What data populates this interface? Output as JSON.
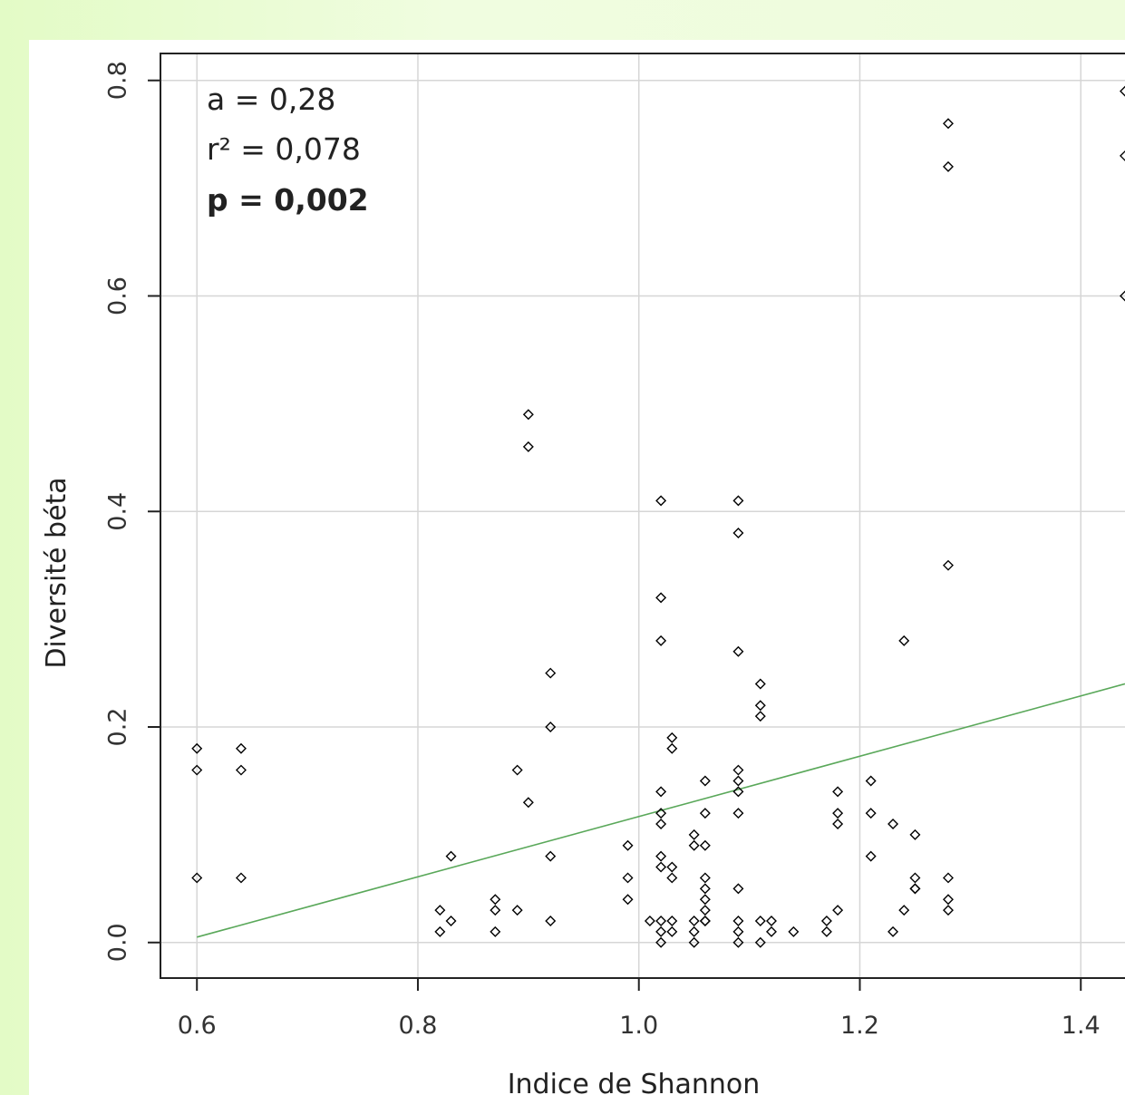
{
  "chart_data": {
    "type": "scatter",
    "title": "",
    "xlabel": "Indice de Shannon",
    "ylabel": "Diversité béta",
    "xlim": [
      0.567,
      1.44
    ],
    "ylim": [
      -0.033,
      0.825
    ],
    "x_ticks": [
      0.6,
      0.8,
      1.0,
      1.2,
      1.4
    ],
    "y_ticks": [
      0.0,
      0.2,
      0.4,
      0.6,
      0.8
    ],
    "x_tick_labels": [
      "0.6",
      "0.8",
      "1.0",
      "1.2",
      "1.4"
    ],
    "y_tick_labels": [
      "0.0",
      "0.2",
      "0.4",
      "0.6",
      "0.8"
    ],
    "grid": true,
    "annotations": {
      "slope": "a = 0,28",
      "r2": "r² = 0,078",
      "p": "p = 0,002"
    },
    "regression_line": {
      "x": [
        0.6,
        1.44
      ],
      "y": [
        0.005,
        0.24
      ],
      "color": "#5aa85a"
    },
    "marker_color": "#000000",
    "points": {
      "x": [
        0.6,
        0.6,
        0.6,
        0.64,
        0.64,
        0.64,
        0.82,
        0.82,
        0.83,
        0.83,
        0.87,
        0.87,
        0.87,
        0.89,
        0.89,
        0.9,
        0.9,
        0.9,
        0.92,
        0.92,
        0.92,
        0.92,
        0.99,
        0.99,
        0.99,
        1.01,
        1.02,
        1.02,
        1.02,
        1.02,
        1.02,
        1.02,
        1.02,
        1.02,
        1.02,
        1.02,
        1.02,
        1.03,
        1.03,
        1.03,
        1.03,
        1.03,
        1.03,
        1.05,
        1.05,
        1.05,
        1.05,
        1.05,
        1.06,
        1.06,
        1.06,
        1.06,
        1.06,
        1.06,
        1.06,
        1.06,
        1.06,
        1.09,
        1.09,
        1.09,
        1.09,
        1.09,
        1.09,
        1.09,
        1.09,
        1.09,
        1.09,
        1.09,
        1.11,
        1.11,
        1.11,
        1.11,
        1.11,
        1.12,
        1.12,
        1.14,
        1.17,
        1.17,
        1.18,
        1.18,
        1.18,
        1.18,
        1.21,
        1.21,
        1.21,
        1.23,
        1.23,
        1.24,
        1.24,
        1.25,
        1.25,
        1.25,
        1.25,
        1.28,
        1.28,
        1.28,
        1.28,
        1.28,
        1.28,
        1.44,
        1.44,
        1.44
      ],
      "y": [
        0.18,
        0.16,
        0.06,
        0.18,
        0.16,
        0.06,
        0.03,
        0.01,
        0.08,
        0.02,
        0.04,
        0.03,
        0.01,
        0.16,
        0.03,
        0.49,
        0.46,
        0.13,
        0.25,
        0.2,
        0.08,
        0.02,
        0.09,
        0.06,
        0.04,
        0.02,
        0.41,
        0.32,
        0.28,
        0.14,
        0.12,
        0.11,
        0.08,
        0.07,
        0.02,
        0.01,
        0.0,
        0.19,
        0.18,
        0.07,
        0.06,
        0.02,
        0.01,
        0.1,
        0.09,
        0.02,
        0.01,
        0.0,
        0.15,
        0.12,
        0.09,
        0.06,
        0.05,
        0.04,
        0.03,
        0.02,
        0.02,
        0.41,
        0.38,
        0.27,
        0.16,
        0.15,
        0.14,
        0.12,
        0.05,
        0.02,
        0.01,
        0.0,
        0.24,
        0.22,
        0.21,
        0.02,
        0.0,
        0.02,
        0.01,
        0.01,
        0.02,
        0.01,
        0.14,
        0.12,
        0.11,
        0.03,
        0.15,
        0.12,
        0.08,
        0.11,
        0.01,
        0.28,
        0.03,
        0.1,
        0.06,
        0.05,
        0.05,
        0.76,
        0.72,
        0.35,
        0.06,
        0.04,
        0.03,
        0.79,
        0.73,
        0.6
      ]
    }
  }
}
